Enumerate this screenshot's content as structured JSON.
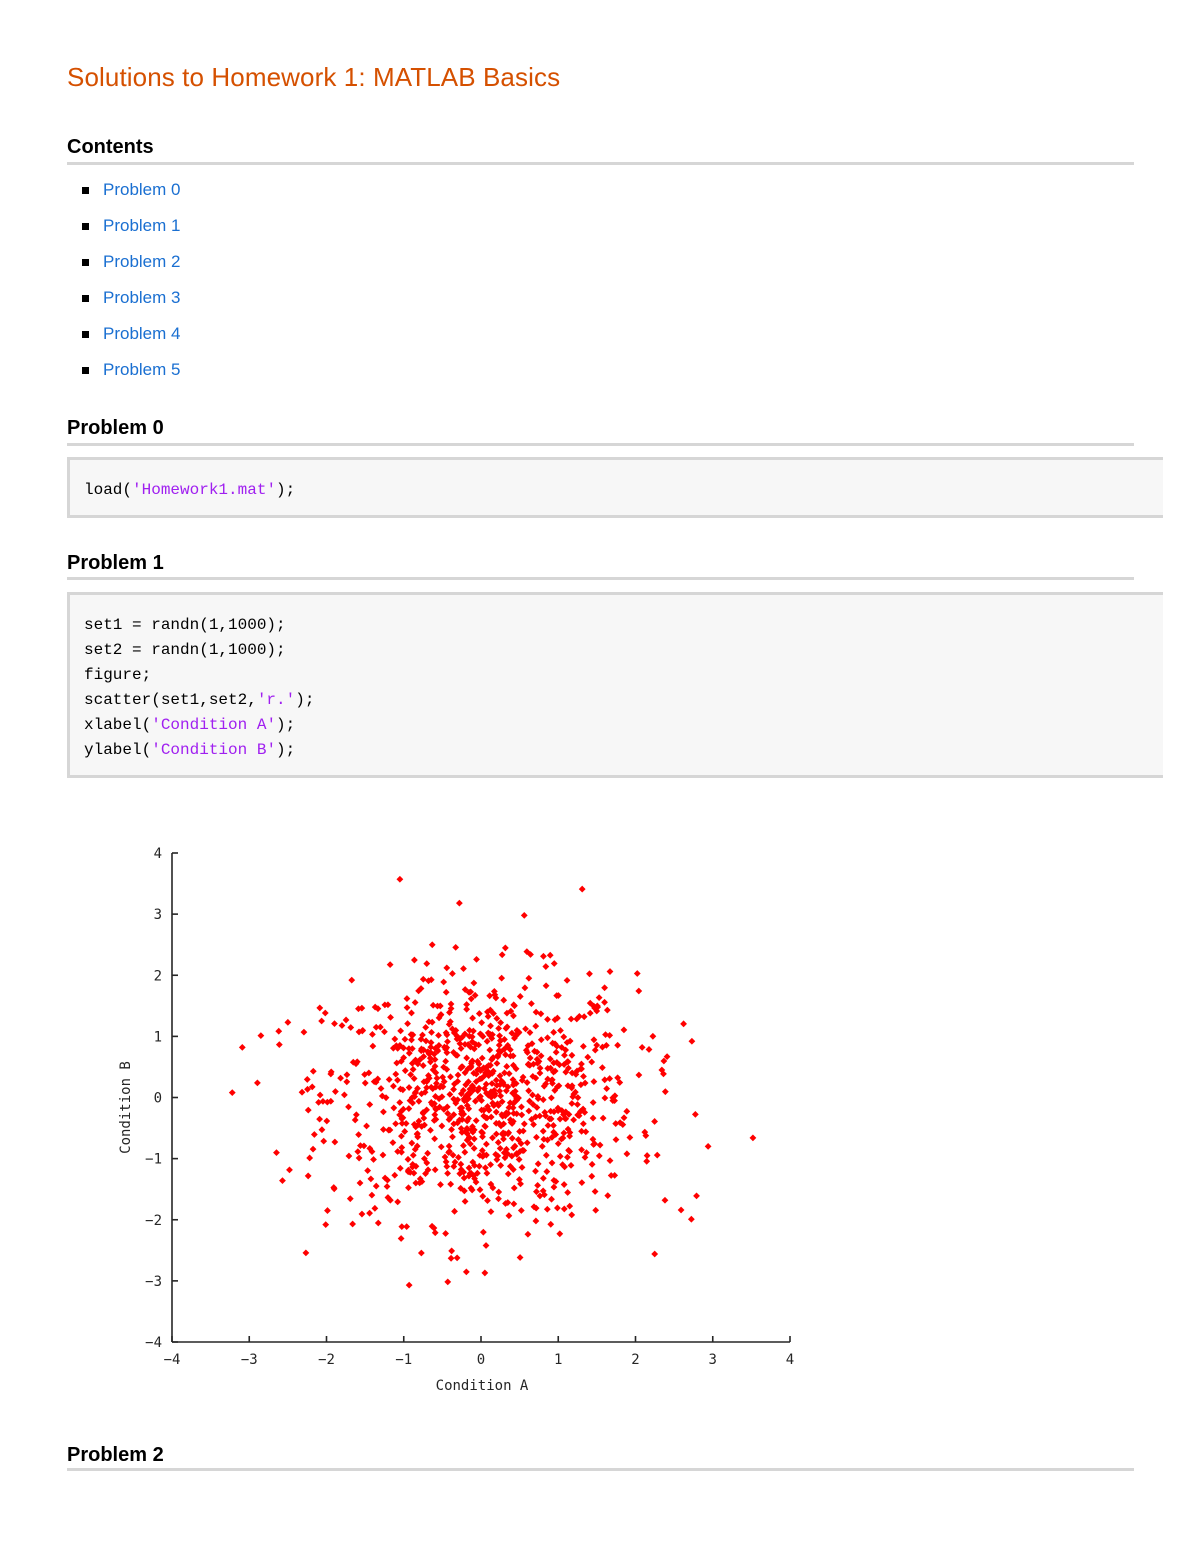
{
  "title": "Solutions to Homework 1: MATLAB Basics",
  "contents": {
    "heading": "Contents",
    "items": [
      {
        "label": "Problem 0"
      },
      {
        "label": "Problem 1"
      },
      {
        "label": "Problem 2"
      },
      {
        "label": "Problem 3"
      },
      {
        "label": "Problem 4"
      },
      {
        "label": "Problem 5"
      }
    ]
  },
  "sections": {
    "problem0": {
      "heading": "Problem 0",
      "code": [
        {
          "pre": "load(",
          "str": "'Homework1.mat'",
          "post": ");"
        }
      ]
    },
    "problem1": {
      "heading": "Problem 1",
      "code": [
        {
          "pre": "set1 = randn(1,1000);",
          "str": "",
          "post": ""
        },
        {
          "pre": "set2 = randn(1,1000);",
          "str": "",
          "post": ""
        },
        {
          "pre": "figure;",
          "str": "",
          "post": ""
        },
        {
          "pre": "scatter(set1,set2,",
          "str": "'r.'",
          "post": ");"
        },
        {
          "pre": "xlabel(",
          "str": "'Condition A'",
          "post": ");"
        },
        {
          "pre": "ylabel(",
          "str": "'Condition B'",
          "post": ");"
        }
      ]
    },
    "problem2": {
      "heading": "Problem 2"
    }
  },
  "colors": {
    "title": "#d55000",
    "link": "#1a6fd1",
    "string": "#a020f0",
    "marker": "#ff0000",
    "rule": "#d6d6d6",
    "code_bg": "#f7f7f7"
  },
  "chart_data": {
    "type": "scatter",
    "title": "",
    "xlabel": "Condition A",
    "ylabel": "Condition B",
    "xlim": [
      -4,
      4
    ],
    "ylim": [
      -4,
      4
    ],
    "xticks": [
      -4,
      -3,
      -2,
      -1,
      0,
      1,
      2,
      3,
      4
    ],
    "yticks": [
      -4,
      -3,
      -2,
      -1,
      0,
      1,
      2,
      3,
      4
    ],
    "grid": false,
    "legend": null,
    "n_points": 1000,
    "distribution": "standard normal (randn) on both axes, ~1000 points, dense core around (0,0)",
    "marker": {
      "shape": "diamond",
      "color": "#ff0000"
    },
    "series": [
      {
        "name": "set1 vs set2",
        "notable_points": [
          {
            "x": -3.22,
            "y": 0.08
          },
          {
            "x": -3.09,
            "y": 0.82
          },
          {
            "x": -2.5,
            "y": 1.23
          },
          {
            "x": -2.57,
            "y": -1.36
          },
          {
            "x": -2.01,
            "y": -2.08
          },
          {
            "x": -1.05,
            "y": 3.57
          },
          {
            "x": -0.28,
            "y": 3.18
          },
          {
            "x": 0.56,
            "y": 2.98
          },
          {
            "x": 1.31,
            "y": 3.41
          },
          {
            "x": 2.73,
            "y": 0.92
          },
          {
            "x": 2.94,
            "y": -0.8
          },
          {
            "x": 3.52,
            "y": -0.66
          },
          {
            "x": 2.79,
            "y": -1.61
          },
          {
            "x": 2.59,
            "y": -1.84
          },
          {
            "x": 1.02,
            "y": -2.23
          },
          {
            "x": 0.05,
            "y": -2.87
          },
          {
            "x": -0.38,
            "y": -2.51
          },
          {
            "x": -0.93,
            "y": -3.07
          }
        ]
      }
    ]
  }
}
